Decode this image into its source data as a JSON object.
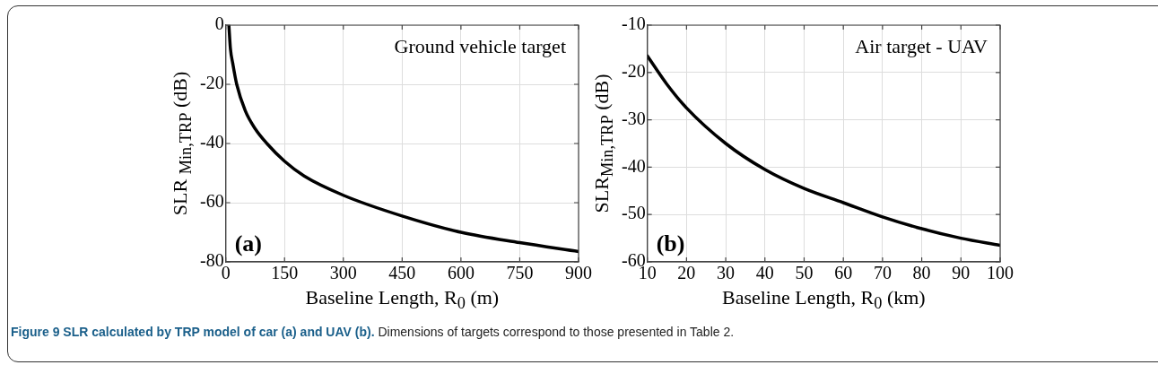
{
  "chart_data": [
    {
      "type": "line",
      "xlabel": "Baseline Length, R$_{0}$ (m)",
      "ylabel": "SLR $_{Min,TRP}$ (dB)",
      "annotations": [
        "Ground vehicle target",
        "(a)"
      ],
      "x": [
        8,
        12,
        18,
        28,
        50,
        75,
        105,
        150,
        200,
        300,
        450,
        600,
        750,
        900
      ],
      "series": [
        {
          "color": "#000000",
          "values": [
            0,
            -8,
            -13,
            -20,
            -29,
            -35,
            -40,
            -46,
            -51,
            -57.5,
            -64.5,
            -70,
            -73.5,
            -76.5
          ]
        }
      ],
      "xlim": [
        0,
        900
      ],
      "xticks": [
        0,
        150,
        300,
        450,
        600,
        750,
        900
      ],
      "ylim": [
        -80,
        0
      ],
      "yticks": [
        -80,
        -60,
        -40,
        -20,
        0
      ],
      "grid": true,
      "legend": false,
      "marker": "none",
      "line_style": "solid"
    },
    {
      "type": "line",
      "xlabel": "Baseline Length, R$_{0}$ (km)",
      "ylabel": "SLR$_{Min,TRP}$ (dB)",
      "annotations": [
        "Air target - UAV",
        "(b)"
      ],
      "x": [
        10,
        15,
        20,
        30,
        40,
        50,
        60,
        70,
        80,
        90,
        100
      ],
      "series": [
        {
          "color": "#000000",
          "values": [
            -16.5,
            -22.5,
            -27.5,
            -35,
            -40.5,
            -44.5,
            -47.5,
            -50.5,
            -53,
            -55,
            -56.5
          ]
        }
      ],
      "xlim": [
        10,
        100
      ],
      "xticks": [
        10,
        20,
        30,
        40,
        50,
        60,
        70,
        80,
        90,
        100
      ],
      "ylim": [
        -60,
        -10
      ],
      "yticks": [
        -60,
        -50,
        -40,
        -30,
        -20,
        -10
      ],
      "grid": true,
      "legend": false,
      "marker": "none",
      "line_style": "solid"
    },
    {
      "type": "other",
      "annotations": [
        "Figure 9 SLR calculated by TRP model of car (a) and UAV (b).",
        "Dimensions of targets correspond to those presented in Table 2."
      ]
    }
  ]
}
